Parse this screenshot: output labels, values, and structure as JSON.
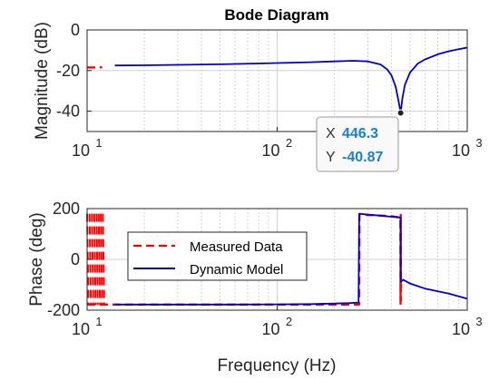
{
  "chart_data": [
    {
      "type": "line",
      "title": "Bode Diagram",
      "ylabel": "Magnitude (dB)",
      "xscale": "log",
      "xlim": [
        10,
        1000
      ],
      "ylim": [
        -50,
        0
      ],
      "yticks": [
        0,
        -20,
        -40
      ],
      "xticks": [
        {
          "base": "10",
          "exp": "1"
        },
        {
          "base": "10",
          "exp": "2"
        },
        {
          "base": "10",
          "exp": "3"
        }
      ],
      "grid": true,
      "series": [
        {
          "name": "Measured Data",
          "color": "#ff0000",
          "style": "dashed",
          "x": [
            10,
            11,
            12
          ],
          "y": [
            -18.5,
            -18.5,
            -18.4
          ]
        },
        {
          "name": "Dynamic Model",
          "color": "#0000cc",
          "style": "solid",
          "x": [
            14,
            20,
            30,
            50,
            80,
            100,
            150,
            200,
            250,
            300,
            350,
            380,
            400,
            420,
            435,
            446.3,
            455,
            470,
            500,
            550,
            600,
            700,
            800,
            900,
            1000
          ],
          "y": [
            -17.5,
            -17.4,
            -17.2,
            -16.9,
            -16.5,
            -16.3,
            -15.9,
            -15.5,
            -15.2,
            -15.5,
            -17.0,
            -19.5,
            -22.5,
            -28.0,
            -35.0,
            -40.87,
            -34.0,
            -27.0,
            -21.0,
            -16.5,
            -14.5,
            -12.0,
            -10.5,
            -9.5,
            -8.7
          ]
        }
      ],
      "datatip": {
        "x_key": "X",
        "x_value": "446.3",
        "y_key": "Y",
        "y_value": "-40.87",
        "x": 446.3,
        "y": -40.87
      }
    },
    {
      "type": "line",
      "xlabel": "Frequency (Hz)",
      "ylabel": "Phase (deg)",
      "xscale": "log",
      "xlim": [
        10,
        1000
      ],
      "ylim": [
        -200,
        200
      ],
      "yticks": [
        200,
        0,
        -200
      ],
      "xticks": [
        {
          "base": "10",
          "exp": "1"
        },
        {
          "base": "10",
          "exp": "2"
        },
        {
          "base": "10",
          "exp": "3"
        }
      ],
      "grid": true,
      "legend_position": "upper-left",
      "series": [
        {
          "name": "Measured Data",
          "color": "#ff0000",
          "style": "dashed",
          "x": [
            10,
            12,
            12.2,
            50,
            100,
            200,
            270,
            271,
            300,
            400,
            445,
            446,
            447,
            448
          ],
          "y": [
            -178,
            -178,
            -178,
            -178,
            -178,
            -178,
            -178,
            178,
            175,
            170,
            165,
            -175,
            175,
            -165
          ]
        },
        {
          "name": "Dynamic Model",
          "color": "#0000cc",
          "style": "solid",
          "x": [
            14,
            30,
            60,
            100,
            150,
            200,
            240,
            268,
            270,
            300,
            350,
            400,
            440,
            446.3,
            447,
            460,
            500,
            600,
            800,
            1000
          ],
          "y": [
            -178,
            -178,
            -178,
            -177,
            -176,
            -174,
            -172,
            -170,
            180,
            176,
            172,
            168,
            165,
            165,
            -90,
            -80,
            -95,
            -115,
            -135,
            -155
          ]
        }
      ]
    }
  ]
}
